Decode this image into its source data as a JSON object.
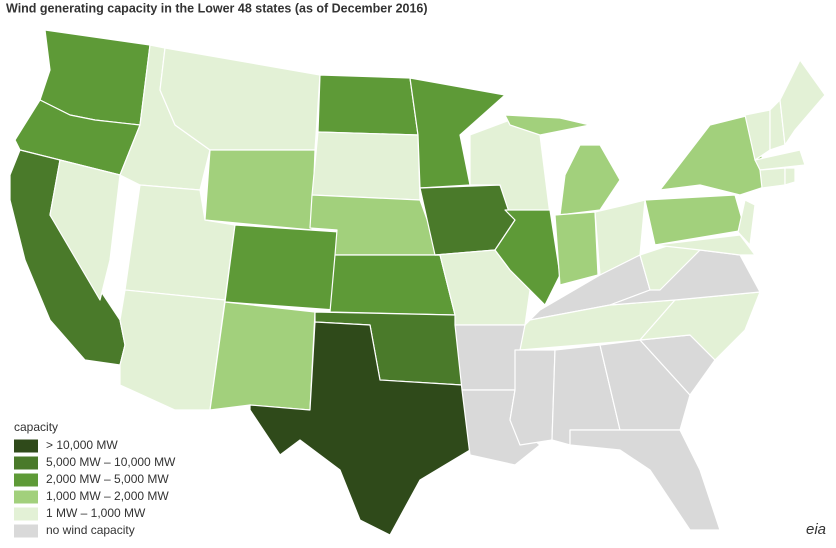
{
  "header": {
    "title": "Wind generating capacity in the Lower 48 states (as of December 2016)"
  },
  "legend": {
    "title": "capacity",
    "items": [
      {
        "label": "> 10,000 MW",
        "color": "#2f4a1a"
      },
      {
        "label": "5,000 MW – 10,000 MW",
        "color": "#4a7a2a"
      },
      {
        "label": "2,000 MW – 5,000 MW",
        "color": "#5e9a37"
      },
      {
        "label": "1,000 MW – 2,000 MW",
        "color": "#a2d07c"
      },
      {
        "label": "1 MW – 1,000 MW",
        "color": "#e3f1d6"
      },
      {
        "label": "no wind capacity",
        "color": "#d9d9d9"
      }
    ]
  },
  "logo": "eia"
}
